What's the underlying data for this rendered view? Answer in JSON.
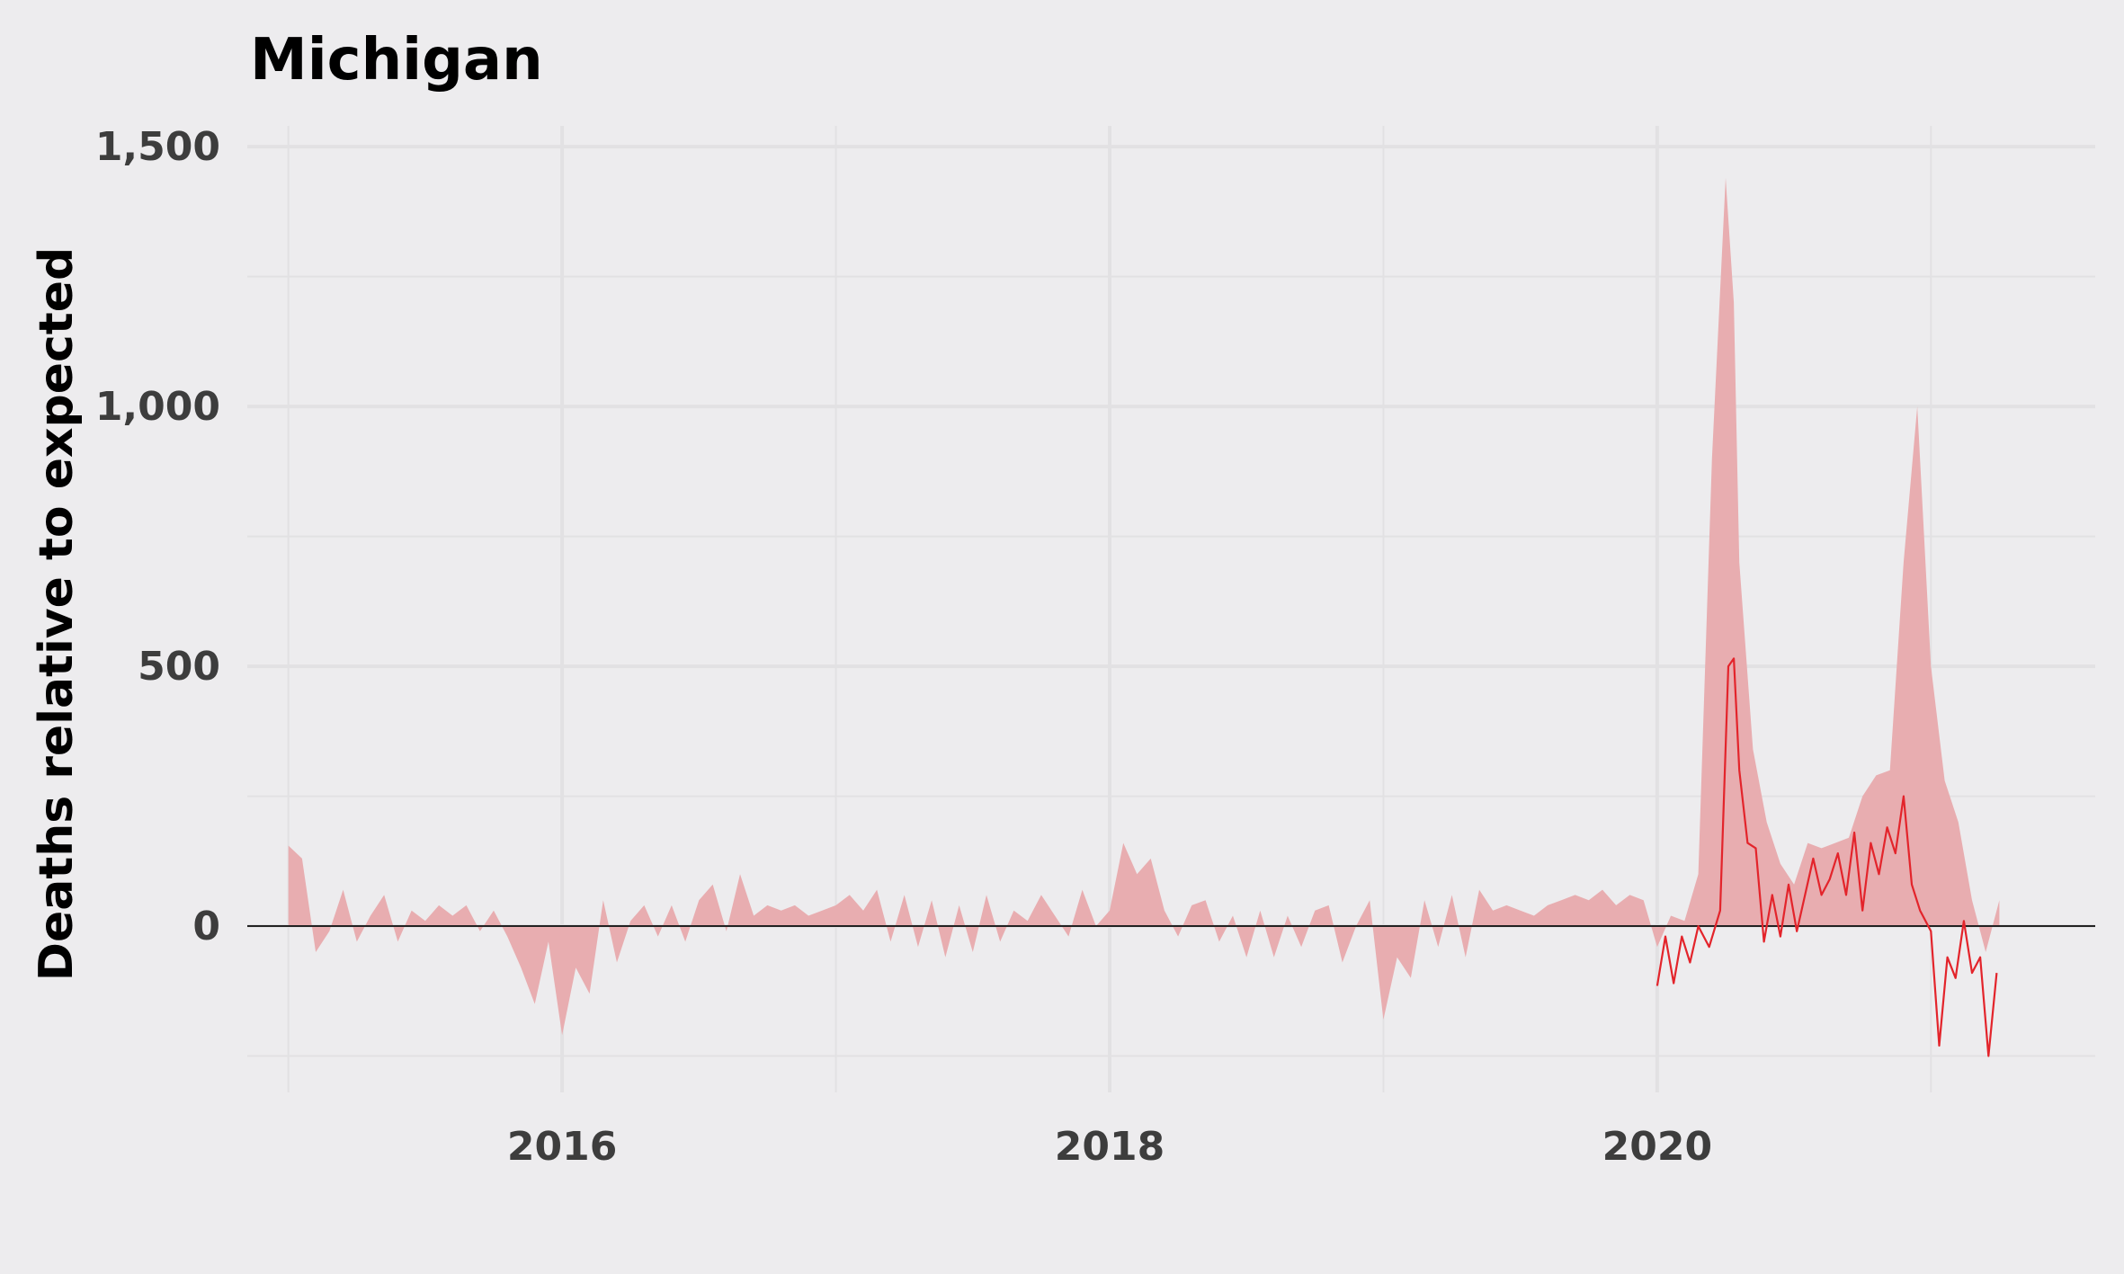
{
  "chart_data": {
    "type": "area",
    "title": "Michigan",
    "xlabel": "",
    "ylabel": "Deaths relative to expected",
    "xlim": [
      2014.85,
      2021.6
    ],
    "ylim": [
      -320,
      1540
    ],
    "x_ticks": [
      2016,
      2018,
      2020
    ],
    "x_tick_labels": [
      "2016",
      "2018",
      "2020"
    ],
    "x_minor_ticks": [
      2015,
      2017,
      2019,
      2021
    ],
    "y_ticks": [
      0,
      500,
      1000,
      1500
    ],
    "y_tick_labels": [
      "0",
      "500",
      "1,000",
      "1,500"
    ],
    "y_minor_ticks": [
      -250,
      250,
      750,
      1250
    ],
    "grid": true,
    "zero_line": true,
    "colors": {
      "background": "#edecee",
      "grid": "#e2e1e3",
      "area": "#e8adb0",
      "line": "#e3242b",
      "zero_line": "#222222"
    },
    "series": [
      {
        "type": "area",
        "x": [
          2015.0,
          2015.05,
          2015.1,
          2015.15,
          2015.2,
          2015.25,
          2015.3,
          2015.35,
          2015.4,
          2015.45,
          2015.5,
          2015.55,
          2015.6,
          2015.65,
          2015.7,
          2015.75,
          2015.8,
          2015.85,
          2015.9,
          2015.95,
          2016.0,
          2016.05,
          2016.1,
          2016.15,
          2016.2,
          2016.25,
          2016.3,
          2016.35,
          2016.4,
          2016.45,
          2016.5,
          2016.55,
          2016.6,
          2016.65,
          2016.7,
          2016.75,
          2016.8,
          2016.85,
          2016.9,
          2016.95,
          2017.0,
          2017.05,
          2017.1,
          2017.15,
          2017.2,
          2017.25,
          2017.3,
          2017.35,
          2017.4,
          2017.45,
          2017.5,
          2017.55,
          2017.6,
          2017.65,
          2017.7,
          2017.75,
          2017.8,
          2017.85,
          2017.9,
          2017.95,
          2018.0,
          2018.05,
          2018.1,
          2018.15,
          2018.2,
          2018.25,
          2018.3,
          2018.35,
          2018.4,
          2018.45,
          2018.5,
          2018.55,
          2018.6,
          2018.65,
          2018.7,
          2018.75,
          2018.8,
          2018.85,
          2018.9,
          2018.95,
          2019.0,
          2019.05,
          2019.1,
          2019.15,
          2019.2,
          2019.25,
          2019.3,
          2019.35,
          2019.4,
          2019.45,
          2019.5,
          2019.55,
          2019.6,
          2019.65,
          2019.7,
          2019.75,
          2019.8,
          2019.85,
          2019.9,
          2019.95,
          2020.0,
          2020.05,
          2020.1,
          2020.15,
          2020.2,
          2020.25,
          2020.28,
          2020.3,
          2020.35,
          2020.4,
          2020.45,
          2020.5,
          2020.55,
          2020.6,
          2020.65,
          2020.7,
          2020.75,
          2020.8,
          2020.85,
          2020.9,
          2020.95,
          2021.0,
          2021.05,
          2021.1,
          2021.15,
          2021.2,
          2021.25
        ],
        "y": [
          155,
          130,
          -50,
          -10,
          70,
          -30,
          20,
          60,
          -30,
          30,
          10,
          40,
          20,
          40,
          -10,
          30,
          -20,
          -80,
          -150,
          -30,
          -210,
          -80,
          -130,
          50,
          -70,
          10,
          40,
          -20,
          40,
          -30,
          50,
          80,
          -10,
          100,
          20,
          40,
          30,
          40,
          20,
          30,
          40,
          60,
          30,
          70,
          -30,
          60,
          -40,
          50,
          -60,
          40,
          -50,
          60,
          -30,
          30,
          10,
          60,
          20,
          -20,
          70,
          0,
          30,
          160,
          100,
          130,
          30,
          -20,
          40,
          50,
          -30,
          20,
          -60,
          30,
          -60,
          20,
          -40,
          30,
          40,
          -70,
          0,
          50,
          -180,
          -60,
          -100,
          50,
          -40,
          60,
          -60,
          70,
          30,
          40,
          30,
          20,
          40,
          50,
          60,
          50,
          70,
          40,
          60,
          50,
          -40,
          20,
          10,
          100,
          900,
          1440,
          1200,
          700,
          340,
          200,
          120,
          80,
          160,
          150,
          160,
          170,
          250,
          290,
          300,
          700,
          1000,
          500,
          280,
          200,
          50,
          -50,
          50
        ]
      },
      {
        "type": "line",
        "x": [
          2020.0,
          2020.03,
          2020.06,
          2020.09,
          2020.12,
          2020.15,
          2020.19,
          2020.23,
          2020.26,
          2020.28,
          2020.3,
          2020.33,
          2020.36,
          2020.39,
          2020.42,
          2020.45,
          2020.48,
          2020.51,
          2020.54,
          2020.57,
          2020.6,
          2020.63,
          2020.66,
          2020.69,
          2020.72,
          2020.75,
          2020.78,
          2020.81,
          2020.84,
          2020.87,
          2020.9,
          2020.93,
          2020.96,
          2021.0,
          2021.03,
          2021.06,
          2021.09,
          2021.12,
          2021.15,
          2021.18,
          2021.21,
          2021.24
        ],
        "y": [
          -115,
          -20,
          -110,
          -20,
          -70,
          0,
          -40,
          30,
          500,
          515,
          300,
          160,
          150,
          -30,
          60,
          -20,
          80,
          -10,
          60,
          130,
          60,
          90,
          140,
          60,
          180,
          30,
          160,
          100,
          190,
          140,
          250,
          80,
          30,
          -10,
          -230,
          -60,
          -100,
          10,
          -90,
          -60,
          -250,
          -90
        ]
      }
    ]
  }
}
